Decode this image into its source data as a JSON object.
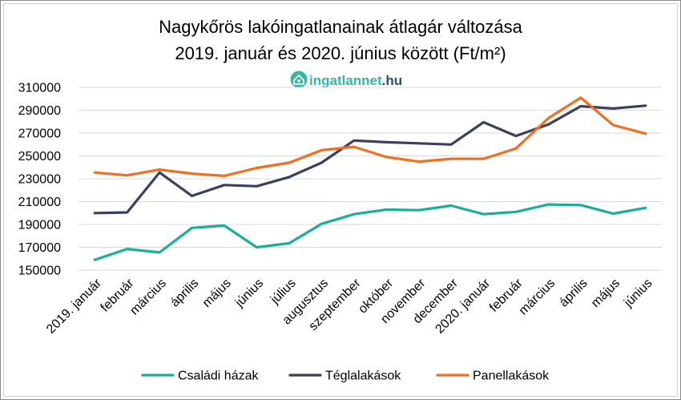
{
  "chart_data": {
    "type": "line",
    "title": "Nagykőrös lakóingatlanainak átlagár változása",
    "subtitle": "2019. január és 2020. június között (Ft/m²)",
    "logo": {
      "brand": "ingatlannet",
      "suffix": ".hu",
      "brand_color": "#3ab5a4",
      "suffix_color": "#2a4d73"
    },
    "categories": [
      "2019. január",
      "február",
      "március",
      "április",
      "május",
      "június",
      "július",
      "augusztus",
      "szeptember",
      "október",
      "november",
      "december",
      "2020. január",
      "február",
      "március",
      "április",
      "május",
      "június"
    ],
    "ylim": [
      150000,
      310000
    ],
    "yticks": [
      "150000",
      "170000",
      "190000",
      "210000",
      "230000",
      "250000",
      "270000",
      "290000",
      "310000"
    ],
    "grid": true,
    "legend_position": "bottom",
    "series": [
      {
        "name": "Családi házak",
        "color": "#1aaf96",
        "values": [
          159000,
          168500,
          165500,
          187000,
          189000,
          170000,
          173500,
          190500,
          199000,
          203000,
          202500,
          206500,
          199000,
          201000,
          207500,
          207000,
          199500,
          204500
        ]
      },
      {
        "name": "Téglalakások",
        "color": "#3d3f5e",
        "values": [
          200000,
          200500,
          235500,
          215000,
          224500,
          223500,
          231500,
          244000,
          263500,
          262000,
          261000,
          260000,
          279500,
          267500,
          277500,
          293500,
          291500,
          294000
        ]
      },
      {
        "name": "Panellakások",
        "color": "#f26f21",
        "values": [
          235500,
          233000,
          238000,
          234500,
          232500,
          239500,
          244000,
          255000,
          258000,
          249000,
          245000,
          247500,
          247500,
          256500,
          283000,
          301000,
          277000,
          269500
        ]
      }
    ]
  }
}
